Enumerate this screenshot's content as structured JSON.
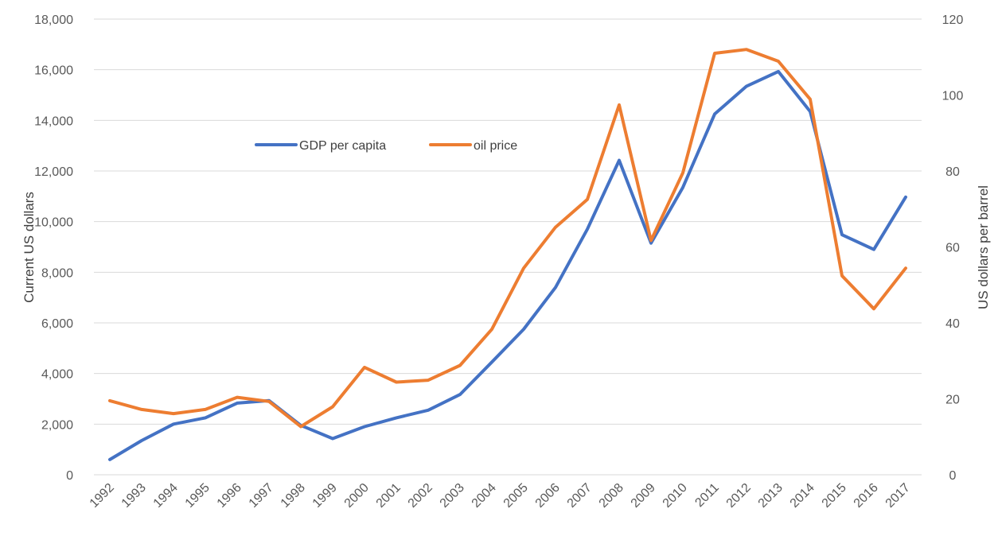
{
  "chart_data": {
    "type": "line",
    "x": [
      "1992",
      "1993",
      "1994",
      "1995",
      "1996",
      "1997",
      "1998",
      "1999",
      "2000",
      "2001",
      "2002",
      "2003",
      "2004",
      "2005",
      "2006",
      "2007",
      "2008",
      "2009",
      "2010",
      "2011",
      "2012",
      "2013",
      "2014",
      "2015",
      "2016",
      "2017"
    ],
    "series": [
      {
        "name": "GDP per capita",
        "axis": "left",
        "color": "#4472c4",
        "values": [
          600,
          1350,
          2000,
          2250,
          2830,
          2930,
          1950,
          1430,
          1900,
          2250,
          2550,
          3170,
          4450,
          5750,
          7400,
          9700,
          12420,
          9150,
          11350,
          14250,
          15350,
          15930,
          14350,
          9480,
          8900,
          10970
        ]
      },
      {
        "name": "oil price",
        "axis": "right",
        "color": "#ed7d31",
        "values": [
          19.5,
          17.2,
          16.1,
          17.2,
          20.4,
          19.3,
          12.7,
          17.9,
          28.3,
          24.4,
          24.9,
          28.8,
          38.3,
          54.4,
          65.2,
          72.5,
          97.4,
          61.7,
          79.5,
          111.0,
          112.0,
          108.9,
          98.9,
          52.4,
          43.7,
          54.4
        ]
      }
    ],
    "y_left": {
      "label": "Current US dollars",
      "ylim": [
        0,
        18000
      ],
      "ticks": [
        0,
        2000,
        4000,
        6000,
        8000,
        10000,
        12000,
        14000,
        16000,
        18000
      ],
      "tick_labels": [
        "0",
        "2,000",
        "4,000",
        "6,000",
        "8,000",
        "10,000",
        "12,000",
        "14,000",
        "16,000",
        "18,000"
      ]
    },
    "y_right": {
      "label": "US dollars per barrel",
      "ylim": [
        0,
        120
      ],
      "ticks": [
        0,
        20,
        40,
        60,
        80,
        100,
        120
      ],
      "tick_labels": [
        "0",
        "20",
        "40",
        "60",
        "80",
        "100",
        "120"
      ]
    },
    "grid": true,
    "legend": {
      "placement": "inside-top-left",
      "entries": [
        "GDP per capita",
        "oil price"
      ]
    }
  }
}
